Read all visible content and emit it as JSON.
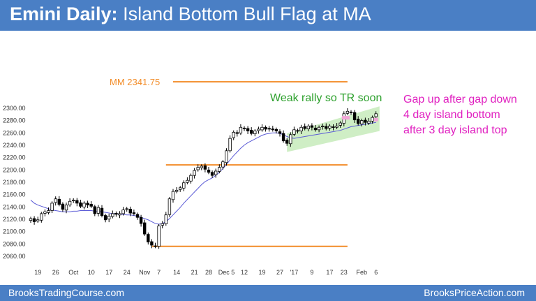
{
  "header": {
    "title_bold": "Emini Daily:",
    "title_rest": "Island Bottom Bull Flag at MA"
  },
  "footer": {
    "left": "BrooksTradingCourse.com",
    "right": "BrooksPriceAction.com"
  },
  "colors": {
    "header_bg": "#4a7fc5",
    "orange": "#f28c28",
    "green": "#2ca02c",
    "magenta": "#e020c0",
    "ma": "#5b5bd6",
    "channel": "#cfeec5"
  },
  "annotations": {
    "mm": "MM 2341.75",
    "rally": "Weak rally so TR soon",
    "right": [
      "Gap up after gap down",
      "4 day island bottom",
      "after 3 day island top"
    ]
  },
  "chart_data": {
    "type": "candlestick",
    "title": "Emini Daily: Island Bottom Bull Flag at MA",
    "ylim": [
      2050,
      2360
    ],
    "y_ticks": [
      2060,
      2080,
      2100,
      2120,
      2140,
      2160,
      2180,
      2200,
      2220,
      2240,
      2260,
      2280,
      2300
    ],
    "y_tick_labels": [
      "2060.00",
      "2080.00",
      "2100.00",
      "2120.00",
      "2140.00",
      "2160.00",
      "2180.00",
      "2200.00",
      "2220.00",
      "2240.00",
      "2260.00",
      "2280.00",
      "2300.00"
    ],
    "x_ticks": [
      {
        "label": "19",
        "bar": 2
      },
      {
        "label": "26",
        "bar": 7
      },
      {
        "label": "Oct",
        "bar": 12
      },
      {
        "label": "10",
        "bar": 17
      },
      {
        "label": "17",
        "bar": 22
      },
      {
        "label": "24",
        "bar": 27
      },
      {
        "label": "Nov",
        "bar": 32
      },
      {
        "label": "7",
        "bar": 36
      },
      {
        "label": "14",
        "bar": 41
      },
      {
        "label": "21",
        "bar": 46
      },
      {
        "label": "28",
        "bar": 50
      },
      {
        "label": "Dec 5",
        "bar": 55
      },
      {
        "label": "12",
        "bar": 60
      },
      {
        "label": "19",
        "bar": 65
      },
      {
        "label": "27",
        "bar": 70
      },
      {
        "label": "'17",
        "bar": 74
      },
      {
        "label": "9",
        "bar": 79
      },
      {
        "label": "17",
        "bar": 84
      },
      {
        "label": "23",
        "bar": 88
      },
      {
        "label": "Feb",
        "bar": 93
      },
      {
        "label": "6",
        "bar": 97
      }
    ],
    "close": [
      2120,
      2115,
      2118,
      2128,
      2131,
      2133,
      2145,
      2152,
      2143,
      2135,
      2142,
      2148,
      2150,
      2145,
      2140,
      2145,
      2142,
      2140,
      2128,
      2138,
      2125,
      2118,
      2124,
      2128,
      2127,
      2128,
      2134,
      2136,
      2129,
      2128,
      2122,
      2112,
      2095,
      2082,
      2077,
      2075,
      2108,
      2112,
      2126,
      2152,
      2164,
      2166,
      2170,
      2178,
      2182,
      2190,
      2198,
      2203,
      2205,
      2200,
      2195,
      2190,
      2197,
      2203,
      2212,
      2230,
      2250,
      2260,
      2258,
      2268,
      2266,
      2262,
      2258,
      2262,
      2265,
      2268,
      2265,
      2266,
      2264,
      2262,
      2258,
      2246,
      2242,
      2256,
      2264,
      2262,
      2268,
      2266,
      2270,
      2268,
      2264,
      2268,
      2270,
      2266,
      2270,
      2268,
      2270,
      2275,
      2290,
      2294,
      2292,
      2280,
      2274,
      2279,
      2276,
      2278,
      2284,
      2290
    ],
    "moving_average": {
      "start": 0,
      "values": [
        2150,
        2145,
        2142,
        2140,
        2138,
        2136,
        2134,
        2133,
        2132,
        2131,
        2131,
        2131,
        2132,
        2132,
        2133,
        2133,
        2133,
        2133,
        2132,
        2132,
        2131,
        2130,
        2129,
        2128,
        2128,
        2127,
        2127,
        2126,
        2126,
        2125,
        2124,
        2122,
        2120,
        2118,
        2115,
        2112,
        2111,
        2112,
        2115,
        2120,
        2126,
        2132,
        2138,
        2145,
        2151,
        2157,
        2163,
        2169,
        2175,
        2180,
        2183,
        2186,
        2190,
        2195,
        2201,
        2208,
        2215,
        2222,
        2228,
        2234,
        2239,
        2243,
        2246,
        2249,
        2252,
        2255,
        2257,
        2258,
        2259,
        2259,
        2258,
        2256,
        2253,
        2251,
        2250,
        2251,
        2252,
        2253,
        2254,
        2255,
        2256,
        2257,
        2258,
        2259,
        2260,
        2261,
        2262,
        2263,
        2265,
        2267,
        2269,
        2270,
        2271,
        2272,
        2273,
        2274,
        2275,
        2276
      ]
    },
    "levels": [
      {
        "value": 2341.75,
        "label": "MM 2341.75",
        "from_bar": 40,
        "to_bar": 89
      },
      {
        "value": 2207,
        "from_bar": 38,
        "to_bar": 89
      },
      {
        "value": 2075,
        "from_bar": 34,
        "to_bar": 89
      }
    ],
    "channel": {
      "from_bar": 72,
      "to_bar": 98,
      "lower": [
        2228,
        2262
      ],
      "upper": [
        2258,
        2302
      ]
    },
    "grid": false,
    "legend": "none"
  }
}
